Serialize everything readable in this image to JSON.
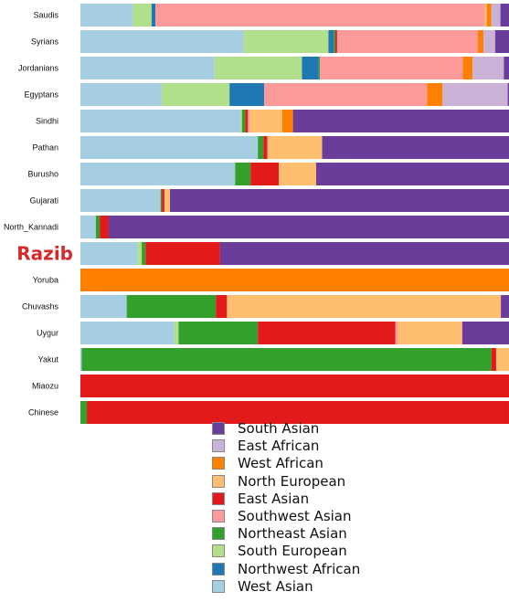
{
  "chart_data": {
    "type": "bar",
    "orientation": "horizontal",
    "stacked": true,
    "normalized_to_percent": true,
    "categories": [
      "Saudis",
      "Syrians",
      "Jordanians",
      "Egyptans",
      "Sindhi",
      "Pathan",
      "Burusho",
      "Gujarati",
      "North_Kannadi",
      "Razib",
      "Yoruba",
      "Chuvashs",
      "Uygur",
      "Yakut",
      "Miaozu",
      "Chinese"
    ],
    "highlight_category": "Razib",
    "highlight_color": "#d42a2a",
    "stack_order": [
      "West Asian",
      "South European",
      "Northwest African",
      "Northeast Asian",
      "East Asian",
      "Southwest Asian",
      "North European",
      "West African",
      "East African",
      "South Asian"
    ],
    "series": [
      {
        "name": "West Asian",
        "color": "#a6cee3",
        "values": [
          12.3,
          37.7,
          31.3,
          19.0,
          37.4,
          41.4,
          36.1,
          18.7,
          3.6,
          13.3,
          0,
          10.8,
          21.9,
          0.3,
          0,
          0
        ]
      },
      {
        "name": "South European",
        "color": "#b2df8a",
        "values": [
          4.3,
          19.6,
          20.4,
          15.8,
          0.3,
          0,
          0,
          0,
          0,
          1.0,
          0,
          0,
          1.0,
          0,
          0,
          0
        ]
      },
      {
        "name": "Northwest African",
        "color": "#1f78b4",
        "values": [
          0.9,
          1.2,
          3.9,
          8.1,
          0,
          0,
          0,
          0,
          0,
          0,
          0,
          0,
          0,
          0,
          0,
          0
        ]
      },
      {
        "name": "Northeast Asian",
        "color": "#33a02c",
        "values": [
          0,
          0.4,
          0.3,
          0,
          0.8,
          1.3,
          3.6,
          0.3,
          0.9,
          0.9,
          0,
          20.8,
          18.5,
          95.6,
          0,
          1.5
        ]
      },
      {
        "name": "East Asian",
        "color": "#e31a1c",
        "values": [
          0,
          0.4,
          0,
          0,
          0.6,
          0.9,
          6.6,
          0.6,
          2.1,
          17.4,
          0,
          2.6,
          32.1,
          1.1,
          100,
          98.5
        ]
      },
      {
        "name": "Southwest Asian",
        "color": "#fb9a99",
        "values": [
          76.9,
          32.5,
          33.3,
          38.0,
          0.5,
          0,
          0,
          0,
          0,
          0,
          0,
          0,
          0.6,
          0,
          0,
          0
        ]
      },
      {
        "name": "North European",
        "color": "#fdbf6f",
        "values": [
          0.4,
          0,
          0,
          0,
          7.5,
          12.8,
          8.7,
          1.3,
          0,
          0,
          0,
          63.9,
          15.0,
          3.0,
          0,
          0
        ]
      },
      {
        "name": "West African",
        "color": "#ff7f00",
        "values": [
          1.1,
          1.3,
          2.3,
          3.6,
          2.5,
          0,
          0,
          0,
          0,
          0,
          100,
          0,
          0,
          0,
          0,
          0
        ]
      },
      {
        "name": "East African",
        "color": "#cab2d6",
        "values": [
          2.1,
          2.7,
          7.3,
          15.2,
          0,
          0,
          0,
          0,
          0,
          0,
          0,
          0,
          0,
          0,
          0,
          0
        ]
      },
      {
        "name": "South Asian",
        "color": "#6a3d9a",
        "values": [
          2.0,
          3.2,
          1.2,
          0.3,
          50.4,
          43.6,
          45.0,
          79.1,
          93.4,
          67.4,
          0,
          1.9,
          10.9,
          0,
          0,
          0
        ]
      }
    ],
    "legend_order": [
      "South Asian",
      "East African",
      "West African",
      "North European",
      "East Asian",
      "Southwest Asian",
      "Northeast Asian",
      "South European",
      "Northwest African",
      "West Asian"
    ],
    "legend_placement": "bottom-center",
    "grid": false,
    "title": "",
    "xlabel": "",
    "ylabel": ""
  }
}
